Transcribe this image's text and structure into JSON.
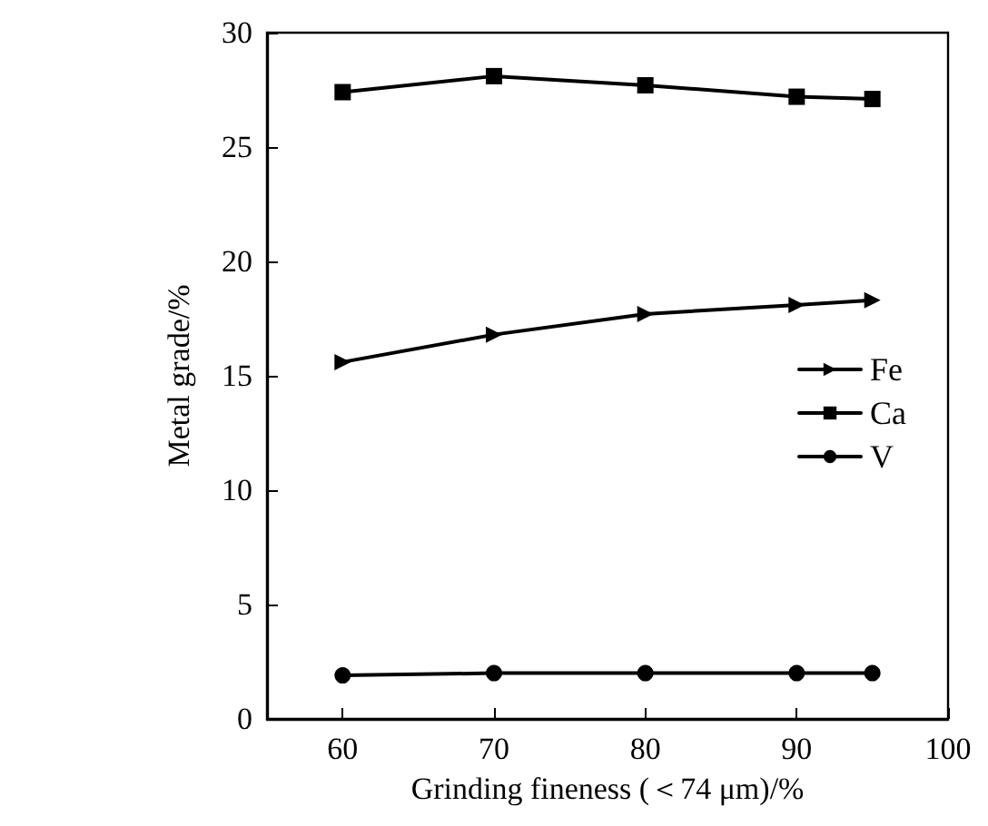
{
  "chart_data": {
    "type": "line",
    "xlabel": "Grinding fineness (＜74 μm)/%",
    "ylabel": "Metal grade/%",
    "x": [
      60,
      70,
      80,
      90,
      95
    ],
    "series": [
      {
        "name": "Fe",
        "color": "#000000",
        "marker": "triangle",
        "values": [
          15.6,
          16.8,
          17.7,
          18.1,
          18.3
        ]
      },
      {
        "name": "Ca",
        "color": "#000000",
        "marker": "square",
        "values": [
          27.4,
          28.1,
          27.7,
          27.2,
          27.1
        ]
      },
      {
        "name": "V",
        "color": "#000000",
        "marker": "circle",
        "values": [
          1.9,
          2.0,
          2.0,
          2.0,
          2.0
        ]
      }
    ],
    "xlim": [
      55,
      100
    ],
    "xticks": [
      60,
      70,
      80,
      90,
      100
    ],
    "ylim": [
      0,
      30
    ],
    "yticks": [
      0,
      5,
      10,
      15,
      20,
      25,
      30
    ],
    "grid": false,
    "legend": "right",
    "line_style": "solid"
  }
}
